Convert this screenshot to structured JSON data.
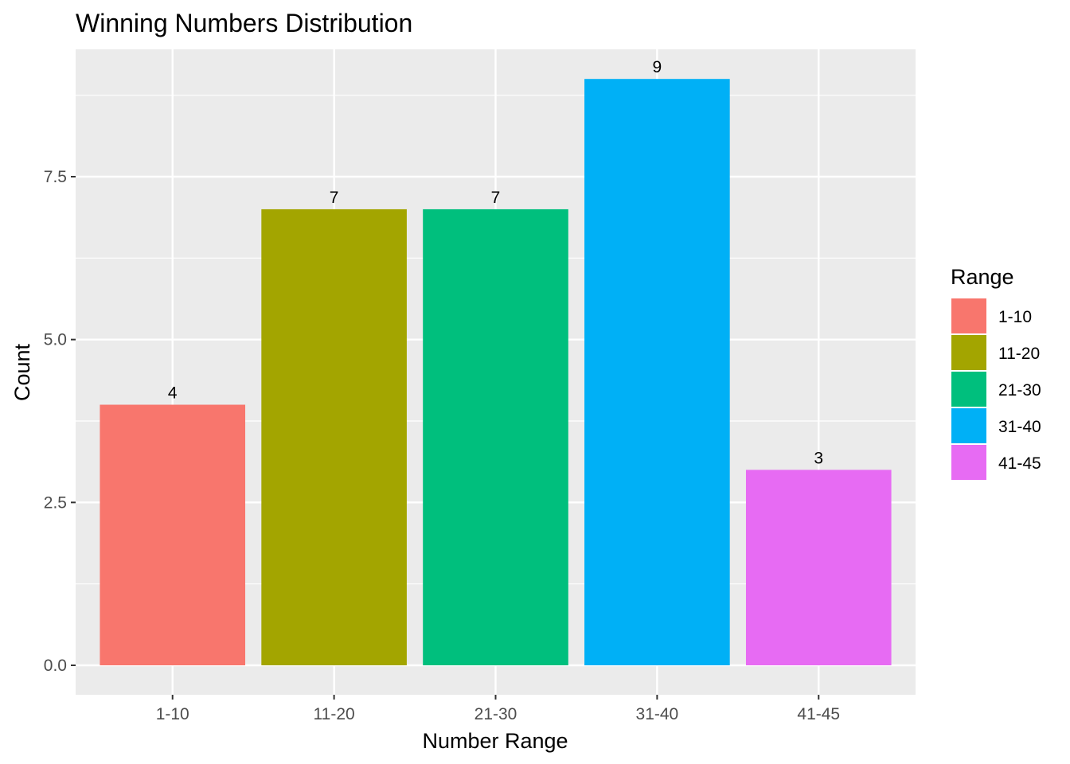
{
  "chart_data": {
    "type": "bar",
    "title": "Winning Numbers Distribution",
    "xlabel": "Number Range",
    "ylabel": "Count",
    "categories": [
      "1-10",
      "11-20",
      "21-30",
      "31-40",
      "41-45"
    ],
    "values": [
      4,
      7,
      7,
      9,
      3
    ],
    "data_labels": [
      "4",
      "7",
      "7",
      "9",
      "3"
    ],
    "colors": [
      "#F8766D",
      "#A3A500",
      "#00BF7D",
      "#00B0F6",
      "#E76BF3"
    ],
    "ylim": [
      0,
      9
    ],
    "y_ticks": [
      0,
      2.5,
      5,
      7.5
    ],
    "y_tick_labels": [
      "0.0",
      "2.5",
      "5.0",
      "7.5"
    ],
    "grid": true,
    "panel_background": "#EBEBEB",
    "grid_color": "#FFFFFF",
    "legend": {
      "title": "Range",
      "position": "right",
      "entries": [
        "1-10",
        "11-20",
        "21-30",
        "31-40",
        "41-45"
      ]
    }
  }
}
